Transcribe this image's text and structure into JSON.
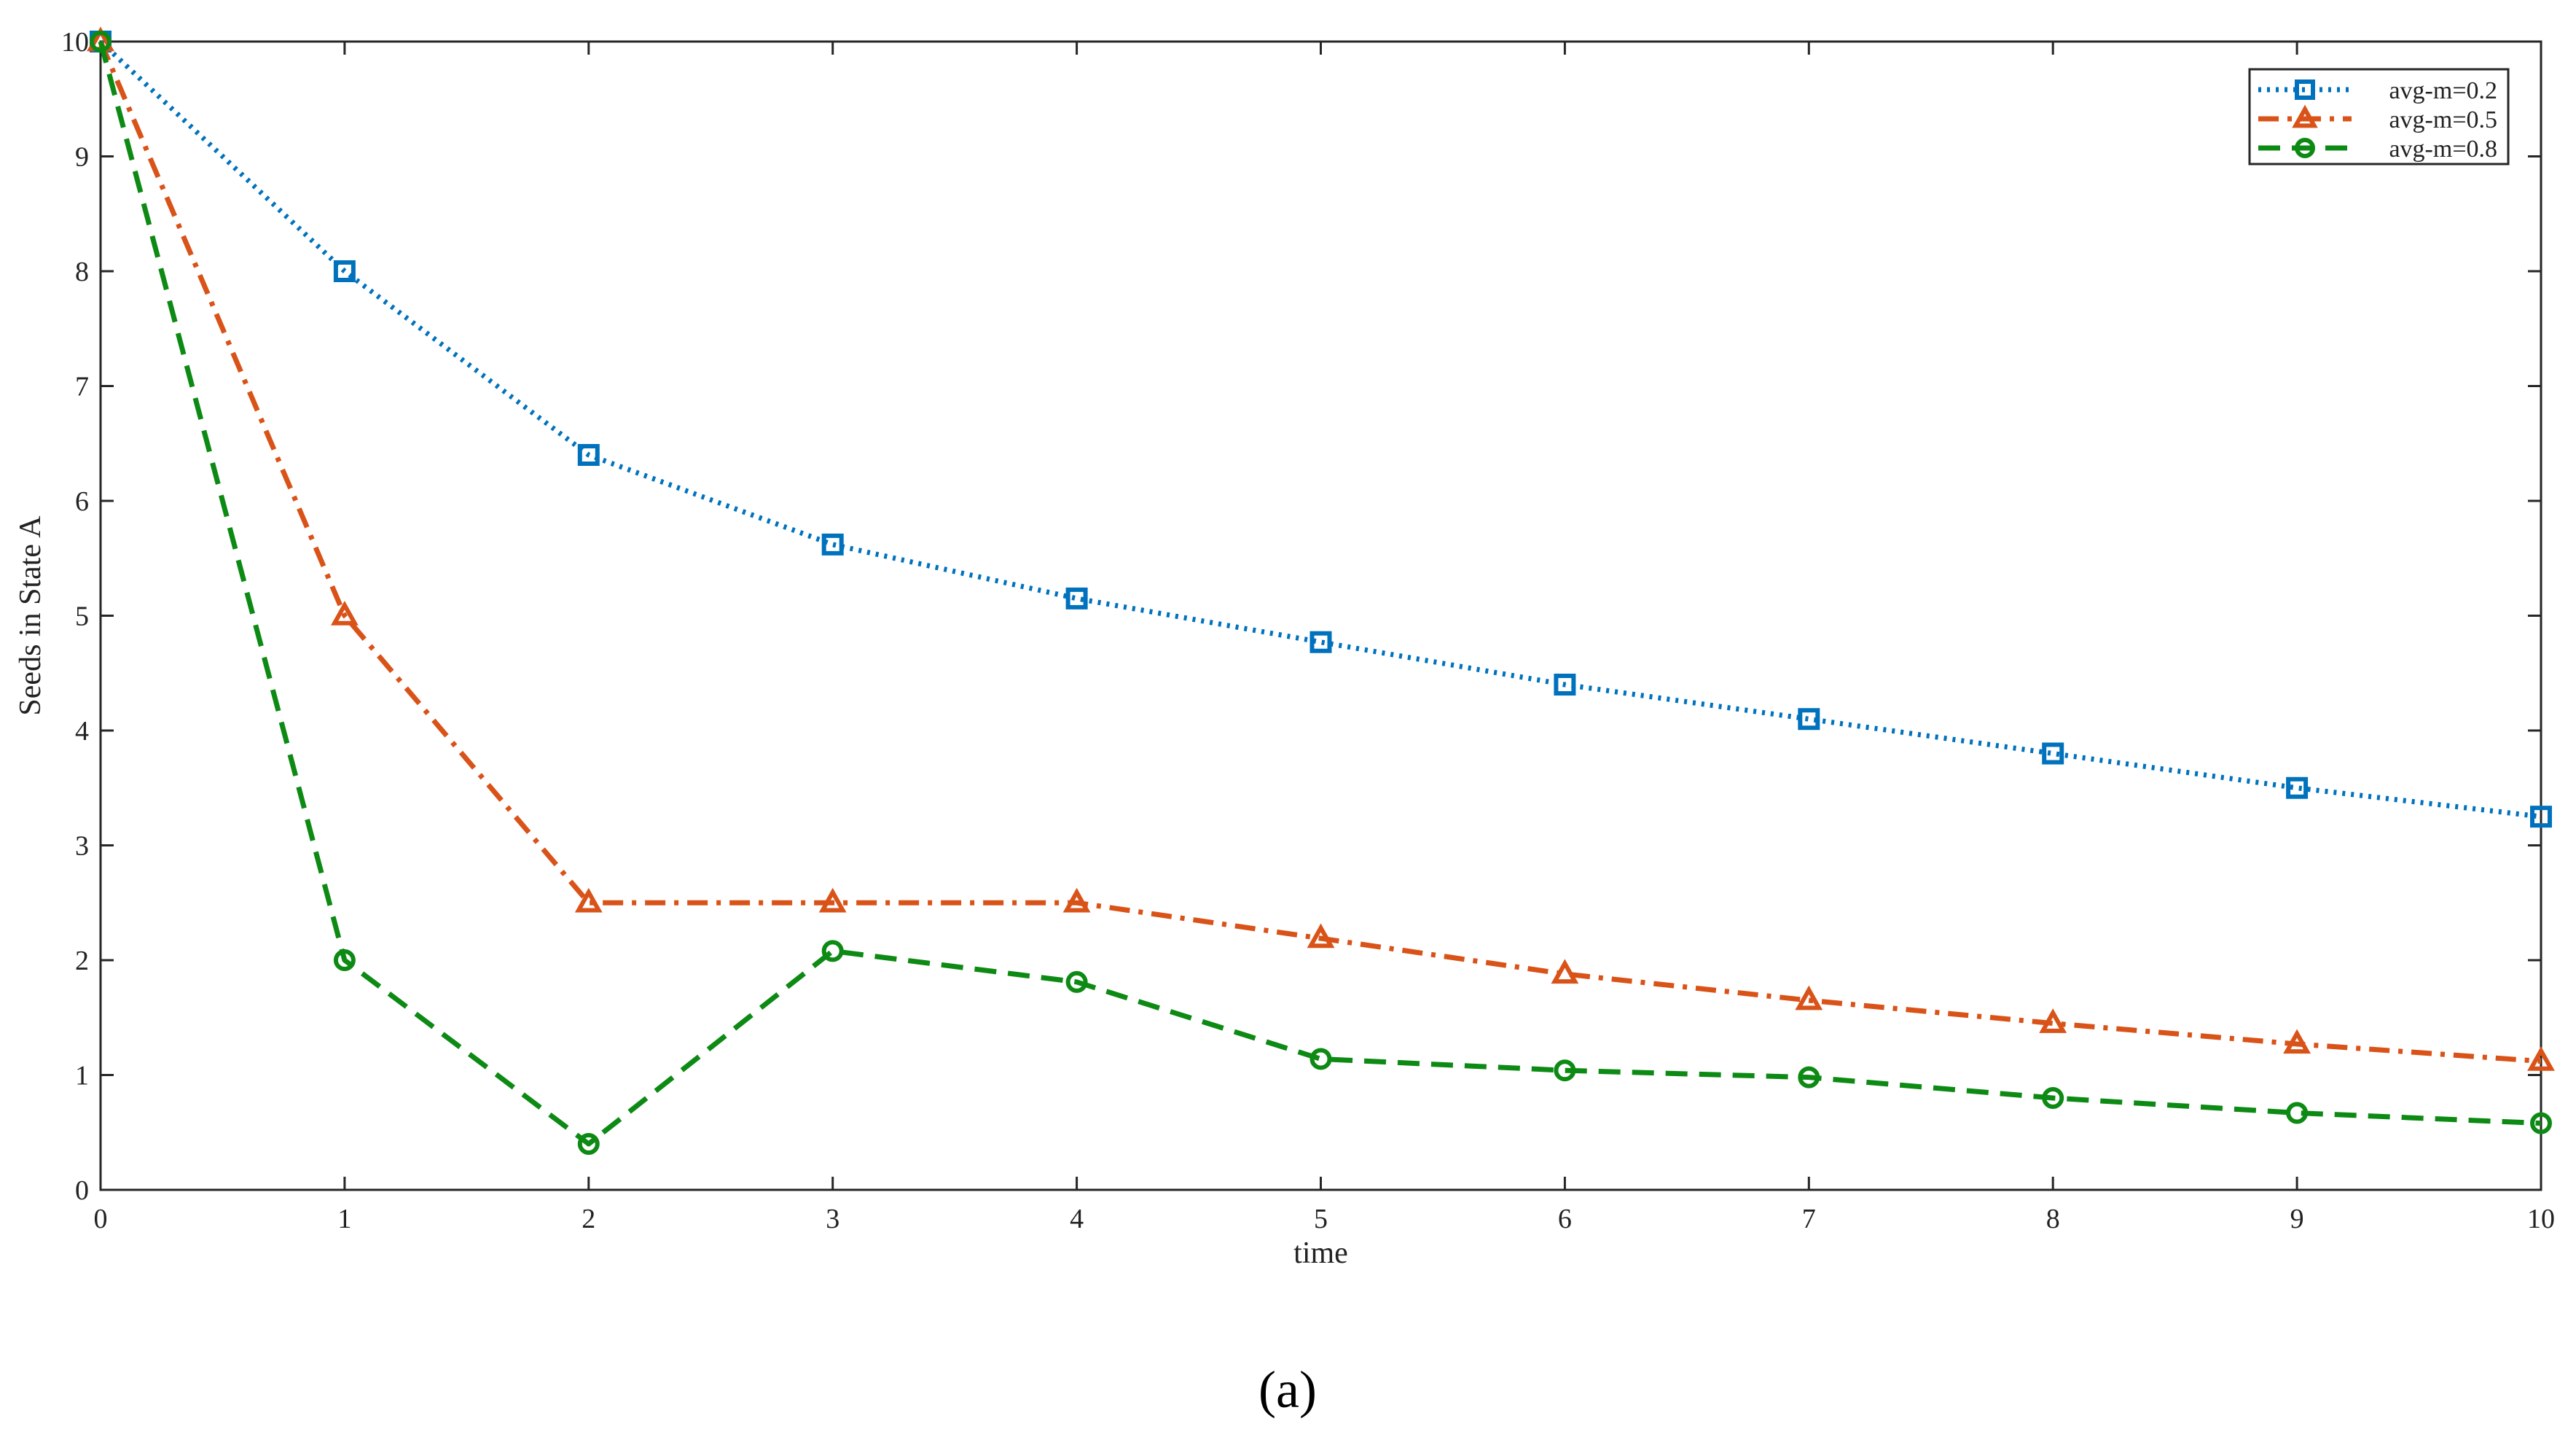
{
  "chart_data": {
    "type": "line",
    "title": "",
    "xlabel": "time",
    "ylabel": "Seeds in State A",
    "x": [
      0,
      1,
      2,
      3,
      4,
      5,
      6,
      7,
      8,
      9,
      10
    ],
    "xlim": [
      0,
      10
    ],
    "ylim": [
      0,
      10
    ],
    "xticks": [
      "0",
      "1",
      "2",
      "3",
      "4",
      "5",
      "6",
      "7",
      "8",
      "9",
      "10"
    ],
    "yticks": [
      "0",
      "1",
      "2",
      "3",
      "4",
      "5",
      "6",
      "7",
      "8",
      "9",
      "10"
    ],
    "grid": false,
    "legend_position": "top-right",
    "series": [
      {
        "name": "avg-m=0.2",
        "color": "#0072BD",
        "line_style": "dotted",
        "marker": "square",
        "values": [
          10,
          8.0,
          6.4,
          5.62,
          5.15,
          4.77,
          4.4,
          4.1,
          3.8,
          3.5,
          3.25
        ]
      },
      {
        "name": "avg-m=0.5",
        "color": "#D95319",
        "line_style": "dash-dot",
        "marker": "triangle",
        "values": [
          10,
          5.0,
          2.5,
          2.5,
          2.5,
          2.19,
          1.88,
          1.65,
          1.45,
          1.27,
          1.12
        ]
      },
      {
        "name": "avg-m=0.8",
        "color": "#0D8A14",
        "line_style": "dashed",
        "marker": "circle",
        "values": [
          10,
          2.0,
          0.4,
          2.08,
          1.81,
          1.14,
          1.04,
          0.98,
          0.8,
          0.67,
          0.58
        ]
      }
    ]
  },
  "caption": "(a)"
}
